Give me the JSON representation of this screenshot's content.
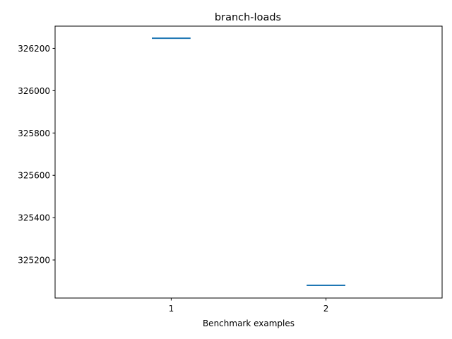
{
  "chart_data": {
    "type": "line",
    "title": "branch-loads",
    "xlabel": "Benchmark examples",
    "ylabel": "",
    "x_categories": [
      "1",
      "2"
    ],
    "xlim": [
      0.25,
      2.75
    ],
    "ylim": [
      325020,
      326305
    ],
    "y_ticks": [
      325200,
      325400,
      325600,
      325800,
      326000,
      326200
    ],
    "y_tick_labels": [
      "325200",
      "325400",
      "325600",
      "325800",
      "326000",
      "326200"
    ],
    "series": [
      {
        "type": "hline-markers",
        "color": "#1f77b4",
        "points": [
          {
            "x": 1,
            "y": 326248
          },
          {
            "x": 2,
            "y": 325080
          }
        ],
        "half_width": 0.125
      }
    ],
    "grid": false,
    "legend": false
  }
}
